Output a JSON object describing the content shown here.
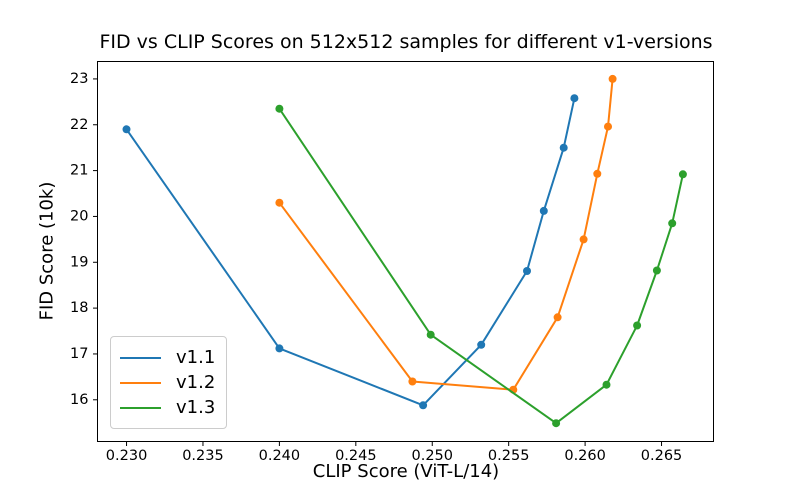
{
  "chart_data": {
    "type": "line",
    "title": "FID vs CLIP Scores on 512x512 samples for different v1-versions",
    "xlabel": "CLIP Score (ViT-L/14)",
    "ylabel": "FID Score (10k)",
    "xlim": [
      0.2281,
      0.2684
    ],
    "ylim": [
      15.09,
      23.38
    ],
    "grid": false,
    "xticks": {
      "values": [
        0.23,
        0.235,
        0.24,
        0.245,
        0.25,
        0.255,
        0.26,
        0.265
      ],
      "labels": [
        "0.230",
        "0.235",
        "0.240",
        "0.245",
        "0.250",
        "0.255",
        "0.260",
        "0.265"
      ]
    },
    "yticks": {
      "values": [
        16,
        17,
        18,
        19,
        20,
        21,
        22,
        23
      ],
      "labels": [
        "16",
        "17",
        "18",
        "19",
        "20",
        "21",
        "22",
        "23"
      ]
    },
    "legend": {
      "position": "lower left",
      "entries": [
        "v1.1",
        "v1.2",
        "v1.3"
      ]
    },
    "series": [
      {
        "name": "v1.1",
        "color": "#1f77b4",
        "marker": "circle",
        "points": [
          [
            0.23,
            21.9
          ],
          [
            0.24,
            17.12
          ],
          [
            0.2494,
            15.88
          ],
          [
            0.2532,
            17.2
          ],
          [
            0.2562,
            18.81
          ],
          [
            0.2573,
            20.12
          ],
          [
            0.2586,
            21.5
          ],
          [
            0.2593,
            22.58
          ]
        ]
      },
      {
        "name": "v1.2",
        "color": "#ff7f0e",
        "marker": "circle",
        "points": [
          [
            0.24,
            20.3
          ],
          [
            0.2487,
            16.4
          ],
          [
            0.2553,
            16.22
          ],
          [
            0.2582,
            17.8
          ],
          [
            0.2599,
            19.5
          ],
          [
            0.2608,
            20.93
          ],
          [
            0.2615,
            21.96
          ],
          [
            0.2618,
            23.0
          ]
        ]
      },
      {
        "name": "v1.3",
        "color": "#2ca02c",
        "marker": "circle",
        "points": [
          [
            0.24,
            22.35
          ],
          [
            0.2499,
            17.42
          ],
          [
            0.2581,
            15.49
          ],
          [
            0.2614,
            16.33
          ],
          [
            0.2634,
            17.62
          ],
          [
            0.2647,
            18.82
          ],
          [
            0.2657,
            19.85
          ],
          [
            0.2664,
            20.92
          ]
        ]
      }
    ]
  }
}
